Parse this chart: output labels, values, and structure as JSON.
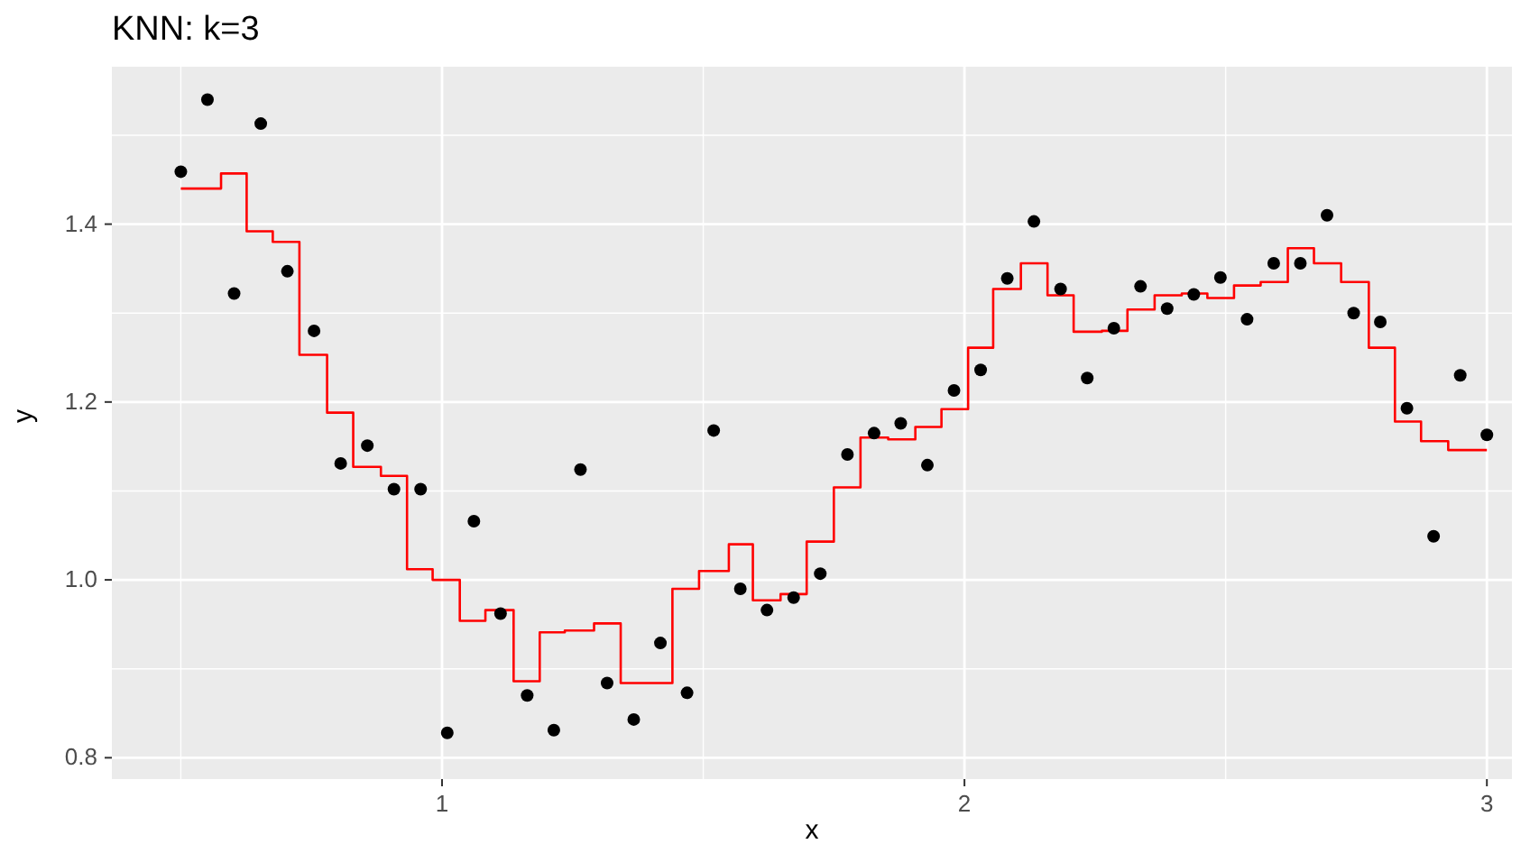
{
  "chart_data": {
    "type": "scatter",
    "title": "KNN: k=3",
    "xlabel": "x",
    "ylabel": "y",
    "xlim": [
      0.368,
      3.048
    ],
    "ylim": [
      0.776,
      1.577
    ],
    "xticks": [
      {
        "value": 0.5,
        "label": null
      },
      1,
      {
        "value": 1.5,
        "label": null
      },
      2,
      {
        "value": 2.5,
        "label": null
      },
      3
    ],
    "yticks": [
      0.8,
      {
        "value": 0.9,
        "label": null
      },
      {
        "value": 1.0,
        "label": "1.0"
      },
      {
        "value": 1.1,
        "label": null
      },
      1.2,
      {
        "value": 1.3,
        "label": null
      },
      1.4,
      {
        "value": 1.5,
        "label": null
      }
    ],
    "grid": true,
    "series": [
      {
        "marker": "circle",
        "color": "#000000",
        "x": [
          0.5,
          0.551,
          0.602,
          0.653,
          0.704,
          0.755,
          0.806,
          0.857,
          0.908,
          0.959,
          1.01,
          1.061,
          1.112,
          1.163,
          1.214,
          1.265,
          1.316,
          1.367,
          1.418,
          1.469,
          1.52,
          1.571,
          1.622,
          1.673,
          1.724,
          1.776,
          1.827,
          1.878,
          1.929,
          1.98,
          2.031,
          2.082,
          2.133,
          2.184,
          2.235,
          2.286,
          2.337,
          2.388,
          2.439,
          2.49,
          2.541,
          2.592,
          2.643,
          2.694,
          2.745,
          2.796,
          2.847,
          2.898,
          2.949,
          3.0
        ],
        "values": [
          1.459,
          1.54,
          1.322,
          1.513,
          1.347,
          1.28,
          1.131,
          1.151,
          1.102,
          1.102,
          0.828,
          1.066,
          0.962,
          0.87,
          0.831,
          1.124,
          0.884,
          0.843,
          0.929,
          0.873,
          1.168,
          0.99,
          0.966,
          0.98,
          1.007,
          1.141,
          1.165,
          1.176,
          1.129,
          1.213,
          1.236,
          1.339,
          1.403,
          1.327,
          1.227,
          1.283,
          1.33,
          1.305,
          1.321,
          1.34,
          1.293,
          1.356,
          1.356,
          1.41,
          1.3,
          1.29,
          1.193,
          1.049,
          1.23,
          1.163
        ]
      },
      {
        "type": "step",
        "color": "#ff0000",
        "x": [
          0.5,
          0.577,
          0.626,
          0.676,
          0.727,
          0.78,
          0.83,
          0.883,
          0.933,
          0.982,
          1.034,
          1.083,
          1.137,
          1.187,
          1.235,
          1.291,
          1.342,
          1.441,
          1.492,
          1.549,
          1.595,
          1.648,
          1.698,
          1.75,
          1.801,
          1.854,
          1.906,
          1.956,
          2.007,
          2.055,
          2.108,
          2.159,
          2.209,
          2.263,
          2.312,
          2.364,
          2.416,
          2.465,
          2.516,
          2.567,
          2.619,
          2.669,
          2.721,
          2.774,
          2.824,
          2.874,
          2.926,
          3.0
        ],
        "values": [
          1.44,
          1.457,
          1.392,
          1.38,
          1.253,
          1.188,
          1.127,
          1.117,
          1.012,
          1.0,
          0.954,
          0.966,
          0.886,
          0.941,
          0.943,
          0.951,
          0.884,
          0.99,
          1.01,
          1.04,
          0.977,
          0.984,
          1.043,
          1.104,
          1.16,
          1.158,
          1.172,
          1.192,
          1.261,
          1.327,
          1.356,
          1.32,
          1.279,
          1.28,
          1.304,
          1.32,
          1.322,
          1.317,
          1.331,
          1.335,
          1.373,
          1.356,
          1.335,
          1.261,
          1.178,
          1.156,
          1.146,
          1.146
        ]
      }
    ]
  }
}
